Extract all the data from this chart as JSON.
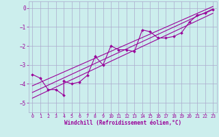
{
  "xlabel": "Windchill (Refroidissement éolien,°C)",
  "background_color": "#cceeed",
  "grid_color": "#aaaacc",
  "line_color": "#990099",
  "xlim": [
    -0.5,
    23.5
  ],
  "ylim": [
    -5.5,
    0.35
  ],
  "yticks": [
    0,
    -1,
    -2,
    -3,
    -4,
    -5
  ],
  "xticks": [
    0,
    1,
    2,
    3,
    4,
    5,
    6,
    7,
    8,
    9,
    10,
    11,
    12,
    13,
    14,
    15,
    16,
    17,
    18,
    19,
    20,
    21,
    22,
    23
  ],
  "data_x": [
    0,
    1,
    2,
    3,
    4,
    4,
    5,
    6,
    7,
    8,
    9,
    10,
    11,
    12,
    13,
    14,
    15,
    16,
    17,
    18,
    19,
    20,
    21,
    22,
    23
  ],
  "data_y": [
    -3.5,
    -3.7,
    -4.3,
    -4.3,
    -4.6,
    -3.85,
    -4.0,
    -3.9,
    -3.55,
    -2.55,
    -3.0,
    -2.0,
    -2.2,
    -2.2,
    -2.3,
    -1.15,
    -1.25,
    -1.58,
    -1.58,
    -1.5,
    -1.3,
    -0.75,
    -0.38,
    -0.28,
    -0.08
  ],
  "reg_lines": [
    {
      "x": [
        0,
        23
      ],
      "y": [
        -4.45,
        -0.05
      ]
    },
    {
      "x": [
        0,
        23
      ],
      "y": [
        -4.1,
        0.08
      ]
    },
    {
      "x": [
        0,
        23
      ],
      "y": [
        -4.75,
        -0.28
      ]
    }
  ]
}
